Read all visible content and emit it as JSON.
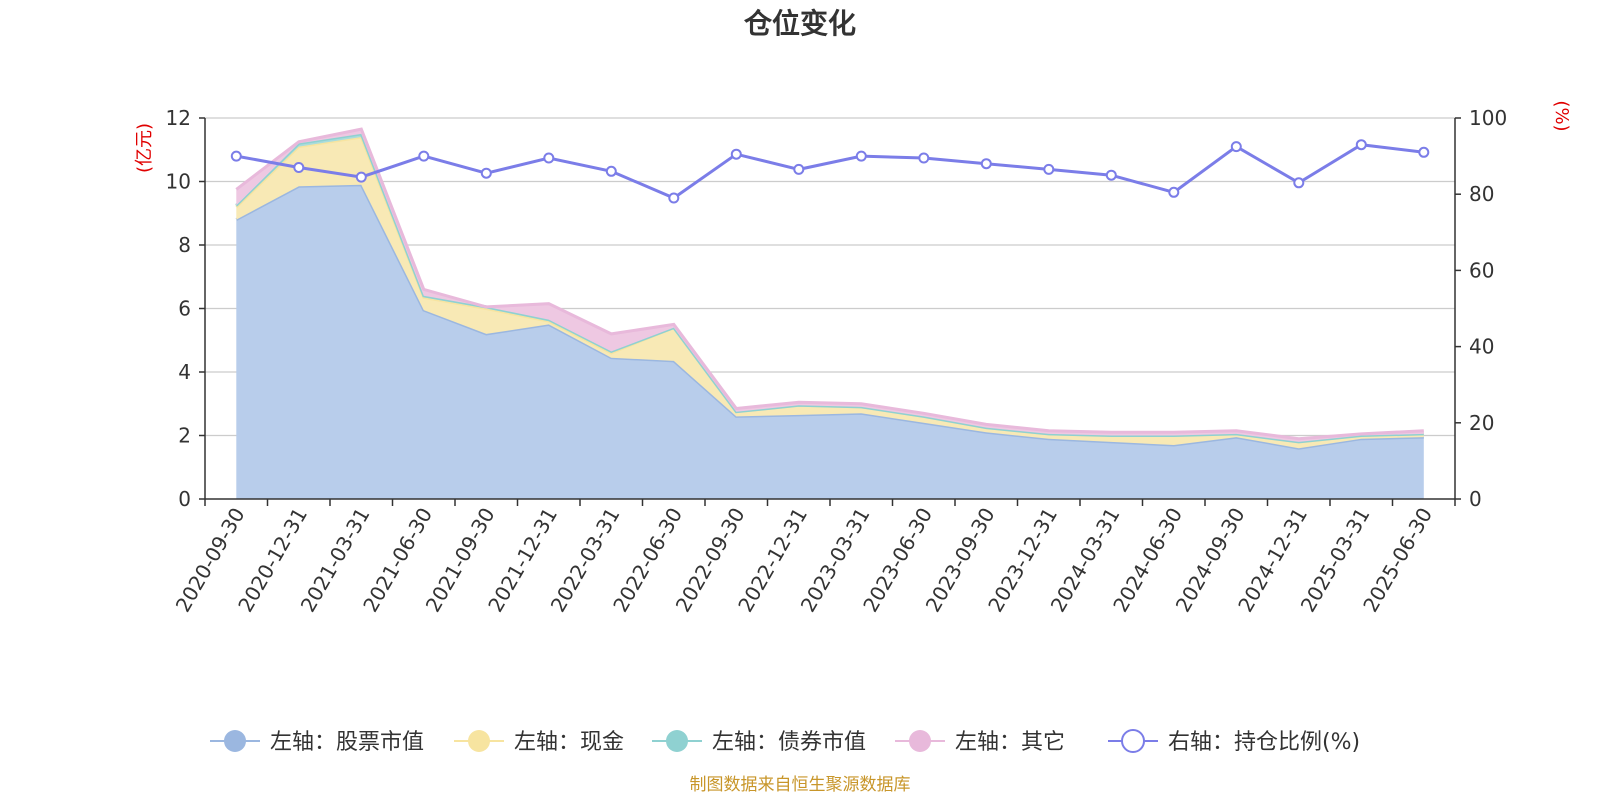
{
  "chart_data": {
    "type": "area",
    "title": "仓位变化",
    "left_unit": "(亿元)",
    "right_unit": "(%)",
    "x": [
      "2020-09-30",
      "2020-12-31",
      "2021-03-31",
      "2021-06-30",
      "2021-09-30",
      "2021-12-31",
      "2022-03-31",
      "2022-06-30",
      "2022-09-30",
      "2022-12-31",
      "2023-03-31",
      "2023-06-30",
      "2023-09-30",
      "2023-12-31",
      "2024-03-31",
      "2024-06-30",
      "2024-09-30",
      "2024-12-31",
      "2025-03-31",
      "2025-06-30"
    ],
    "y_left": {
      "min": 0,
      "max": 12,
      "ticks": [
        0,
        2,
        4,
        6,
        8,
        10,
        12
      ]
    },
    "y_right": {
      "min": 0,
      "max": 100,
      "ticks": [
        0,
        20,
        40,
        60,
        80,
        100
      ]
    },
    "grid": true,
    "legend_position": "bottom",
    "stacked_series": [
      {
        "name": "左轴：股票市值",
        "color": "#9bb7e0",
        "fill": "#b8cdeb",
        "values": [
          8.8,
          9.85,
          9.9,
          5.95,
          5.2,
          5.5,
          4.45,
          4.35,
          2.6,
          2.65,
          2.7,
          2.4,
          2.1,
          1.9,
          1.8,
          1.7,
          1.95,
          1.6,
          1.9,
          1.95
        ]
      },
      {
        "name": "左轴：现金",
        "color": "#f7e4a0",
        "fill": "#f8e9b5",
        "values": [
          0.4,
          1.25,
          1.5,
          0.4,
          0.8,
          0.1,
          0.15,
          1.05,
          0.15,
          0.3,
          0.2,
          0.2,
          0.15,
          0.15,
          0.2,
          0.3,
          0.1,
          0.2,
          0.1,
          0.1
        ]
      },
      {
        "name": "左轴：债券市值",
        "color": "#8fd1d1",
        "fill": "#a9dcdc",
        "values": [
          0.05,
          0.1,
          0.1,
          0.05,
          0.05,
          0.05,
          0.05,
          0.0,
          0.0,
          0.0,
          0.0,
          0.0,
          0.0,
          0.0,
          0.0,
          0.0,
          0.0,
          0.0,
          0.0,
          0.0
        ]
      },
      {
        "name": "左轴：其它",
        "color": "#e8b9db",
        "fill": "#eec8e2",
        "values": [
          0.5,
          0.05,
          0.15,
          0.2,
          0.0,
          0.5,
          0.55,
          0.1,
          0.1,
          0.1,
          0.1,
          0.1,
          0.1,
          0.1,
          0.1,
          0.1,
          0.1,
          0.1,
          0.05,
          0.1
        ]
      }
    ],
    "line_series": {
      "name": "右轴：持仓比例(%)",
      "color": "#7b7de8",
      "values": [
        90,
        87,
        84.5,
        90,
        85.5,
        89.5,
        86,
        79,
        90.5,
        86.5,
        90,
        89.5,
        88,
        86.5,
        85,
        80.5,
        92.5,
        83,
        93,
        91
      ]
    }
  },
  "source": "制图数据来自恒生聚源数据库"
}
